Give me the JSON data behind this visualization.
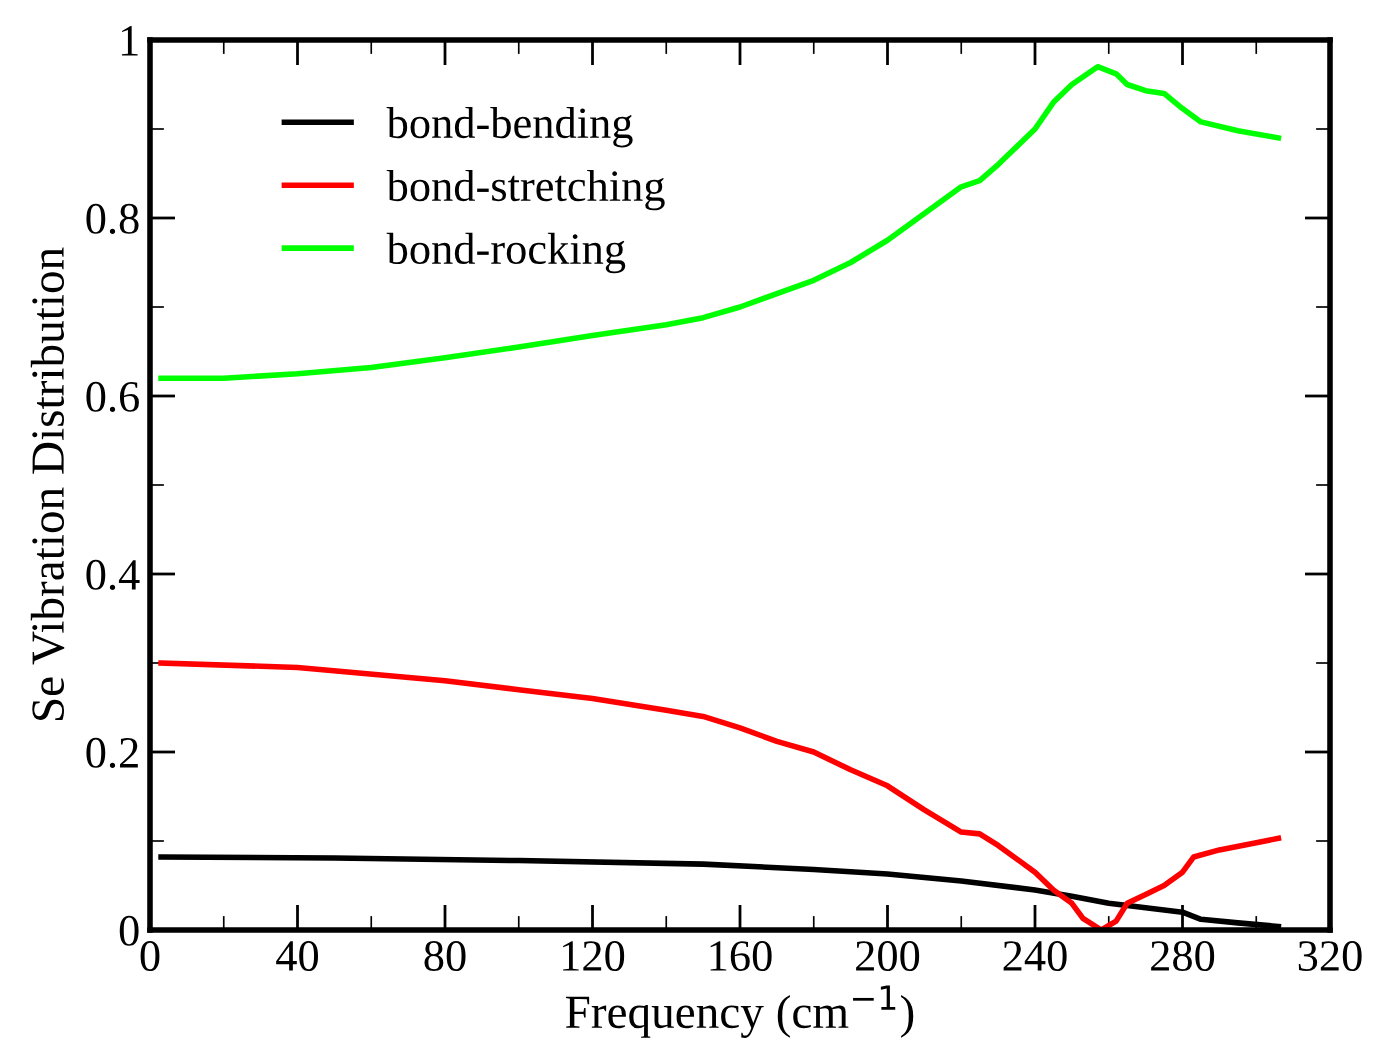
{
  "chart_data": {
    "type": "line",
    "xlabel": "Frequency (cm$^{−1}$)",
    "ylabel": "Se Vibration Distribution",
    "xlim": [
      0,
      320
    ],
    "ylim": [
      0,
      1
    ],
    "xticks": [
      0,
      {
        "value": 20,
        "label": null
      },
      40,
      {
        "value": 60,
        "label": null
      },
      80,
      {
        "value": 100,
        "label": null
      },
      120,
      {
        "value": 140,
        "label": null
      },
      160,
      {
        "value": 180,
        "label": null
      },
      200,
      {
        "value": 220,
        "label": null
      },
      240,
      {
        "value": 260,
        "label": null
      },
      280,
      {
        "value": 300,
        "label": null
      },
      320
    ],
    "yticks": [
      0,
      {
        "value": 0.1,
        "label": null
      },
      0.2,
      {
        "value": 0.3,
        "label": null
      },
      0.4,
      {
        "value": 0.5,
        "label": null
      },
      0.6,
      {
        "value": 0.7,
        "label": null
      },
      0.8,
      {
        "value": 0.9,
        "label": null
      },
      1
    ],
    "legend": "top left",
    "grid": false,
    "marker": "none",
    "line_style": "solid",
    "series": [
      {
        "name": "bond-bending",
        "color": "#000000",
        "x": [
          3,
          50,
          100,
          150,
          180,
          200,
          220,
          240,
          250,
          260,
          270,
          280,
          285,
          295,
          306
        ],
        "values": [
          0.082,
          0.081,
          0.078,
          0.074,
          0.068,
          0.063,
          0.055,
          0.045,
          0.038,
          0.03,
          0.025,
          0.02,
          0.012,
          0.008,
          0.004
        ]
      },
      {
        "name": "bond-stretching",
        "color": "#ff0000",
        "x": [
          3,
          40,
          80,
          100,
          120,
          140,
          150,
          160,
          170,
          180,
          190,
          200,
          210,
          220,
          225,
          230,
          240,
          245,
          250,
          253,
          258,
          262,
          265,
          270,
          275,
          280,
          283,
          290,
          300,
          306
        ],
        "values": [
          0.3,
          0.295,
          0.28,
          0.27,
          0.26,
          0.247,
          0.24,
          0.227,
          0.212,
          0.2,
          0.18,
          0.162,
          0.135,
          0.11,
          0.108,
          0.095,
          0.065,
          0.045,
          0.03,
          0.013,
          0.0,
          0.01,
          0.03,
          0.04,
          0.05,
          0.065,
          0.082,
          0.09,
          0.098,
          0.103
        ]
      },
      {
        "name": "bond-rocking",
        "color": "#00ff00",
        "x": [
          3,
          20,
          40,
          60,
          80,
          100,
          120,
          140,
          150,
          160,
          180,
          190,
          200,
          210,
          220,
          225,
          230,
          240,
          245,
          250,
          257,
          262,
          265,
          270,
          275,
          280,
          285,
          295,
          306
        ],
        "values": [
          0.62,
          0.62,
          0.625,
          0.632,
          0.643,
          0.655,
          0.668,
          0.68,
          0.688,
          0.7,
          0.73,
          0.75,
          0.775,
          0.805,
          0.835,
          0.842,
          0.86,
          0.9,
          0.93,
          0.95,
          0.97,
          0.962,
          0.95,
          0.943,
          0.94,
          0.923,
          0.908,
          0.898,
          0.89
        ]
      }
    ]
  }
}
